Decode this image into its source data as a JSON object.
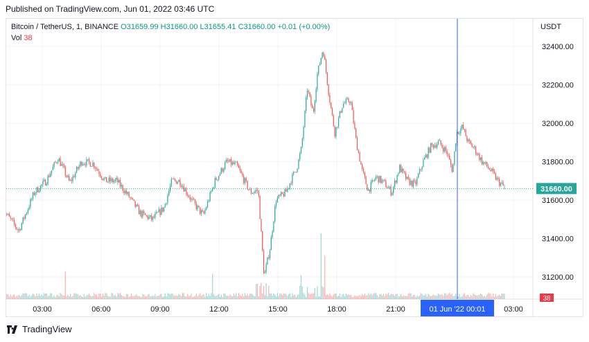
{
  "published": "Published on TradingView.com, Jun 01, 2022 03:46 UTC",
  "legend": {
    "symbol": "Bitcoin / TetherUS, 1, BINANCE",
    "ohlc_text": "O31659.99 H31660.00 L31655.41 C31660.00 +0.01 (+0.00%)",
    "vol_label": "Vol",
    "vol_value": "38"
  },
  "currency": "USDT",
  "footer_brand": "TradingView",
  "colors": {
    "up": "#26a69a",
    "down": "#ef5350",
    "crosshair": "#2962ff",
    "last_price": "#26a69a",
    "grid": "#f0f3fa"
  },
  "chart_data": {
    "type": "candlestick",
    "y_ticks": [
      "32400.00",
      "32200.00",
      "32000.00",
      "31800.00",
      "31600.00",
      "31400.00",
      "31200.00"
    ],
    "x_ticks": [
      "03:00",
      "06:00",
      "09:00",
      "12:00",
      "15:00",
      "18:00",
      "21:00",
      "03:00"
    ],
    "last_price": "31660.00",
    "last_volume": "38",
    "crosshair_time": "01 Jun '22   00:01",
    "price_path": [
      [
        1.0,
        31550
      ],
      [
        1.8,
        31440
      ],
      [
        2.6,
        31640
      ],
      [
        3.2,
        31700
      ],
      [
        3.8,
        31820
      ],
      [
        4.4,
        31690
      ],
      [
        5.0,
        31800
      ],
      [
        5.6,
        31790
      ],
      [
        6.2,
        31700
      ],
      [
        6.8,
        31700
      ],
      [
        7.4,
        31620
      ],
      [
        8.0,
        31530
      ],
      [
        8.6,
        31500
      ],
      [
        9.2,
        31560
      ],
      [
        9.6,
        31700
      ],
      [
        10.0,
        31700
      ],
      [
        10.6,
        31600
      ],
      [
        11.2,
        31520
      ],
      [
        11.8,
        31700
      ],
      [
        12.4,
        31800
      ],
      [
        12.9,
        31780
      ],
      [
        13.2,
        31720
      ],
      [
        13.6,
        31640
      ],
      [
        14.0,
        31650
      ],
      [
        14.3,
        31200
      ],
      [
        14.6,
        31350
      ],
      [
        14.9,
        31600
      ],
      [
        15.4,
        31640
      ],
      [
        16.0,
        31780
      ],
      [
        16.2,
        31870
      ],
      [
        16.5,
        32180
      ],
      [
        16.8,
        32050
      ],
      [
        17.0,
        32250
      ],
      [
        17.3,
        32390
      ],
      [
        17.6,
        32150
      ],
      [
        17.9,
        31950
      ],
      [
        18.3,
        32100
      ],
      [
        18.7,
        32120
      ],
      [
        19.0,
        31900
      ],
      [
        19.3,
        31750
      ],
      [
        19.6,
        31650
      ],
      [
        20.0,
        31720
      ],
      [
        20.4,
        31690
      ],
      [
        20.8,
        31640
      ],
      [
        21.2,
        31770
      ],
      [
        21.6,
        31700
      ],
      [
        22.0,
        31680
      ],
      [
        22.4,
        31800
      ],
      [
        22.8,
        31880
      ],
      [
        23.2,
        31900
      ],
      [
        23.6,
        31850
      ],
      [
        23.9,
        31750
      ],
      [
        24.1,
        31950
      ],
      [
        24.4,
        31980
      ],
      [
        24.7,
        31900
      ],
      [
        25.0,
        31870
      ],
      [
        25.4,
        31800
      ],
      [
        25.8,
        31760
      ],
      [
        26.2,
        31700
      ],
      [
        26.6,
        31660
      ]
    ]
  }
}
